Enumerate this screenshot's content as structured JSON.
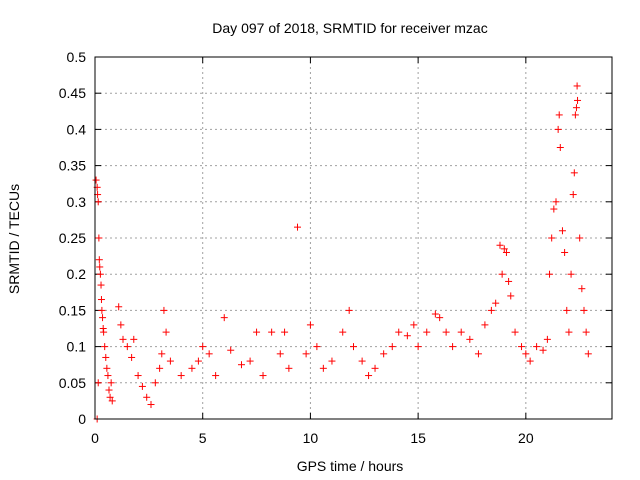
{
  "chart_data": {
    "type": "scatter",
    "title": "Day 097 of 2018, SRMTID for receiver mzac",
    "xlabel": "GPS time / hours",
    "ylabel": "SRMTID / TECUs",
    "xlim": [
      0,
      24
    ],
    "ylim": [
      0,
      0.5
    ],
    "xticks": [
      0,
      5,
      10,
      15,
      20
    ],
    "xtick_labels": [
      "0",
      "5",
      "10",
      "15",
      "20"
    ],
    "yticks": [
      0,
      0.05,
      0.1,
      0.15,
      0.2,
      0.25,
      0.3,
      0.35,
      0.4,
      0.45,
      0.5
    ],
    "ytick_labels": [
      "0",
      "0.05",
      "0.1",
      "0.15",
      "0.2",
      "0.25",
      "0.3",
      "0.35",
      "0.4",
      "0.45",
      "0.5"
    ],
    "grid": true,
    "marker": "+",
    "marker_color": "#ff0000",
    "series": [
      {
        "name": "SRMTID",
        "points": [
          [
            0.05,
            0.33
          ],
          [
            0.1,
            0.32
          ],
          [
            0.12,
            0.31
          ],
          [
            0.15,
            0.3
          ],
          [
            0.18,
            0.25
          ],
          [
            0.2,
            0.22
          ],
          [
            0.22,
            0.21
          ],
          [
            0.25,
            0.2
          ],
          [
            0.28,
            0.185
          ],
          [
            0.3,
            0.165
          ],
          [
            0.32,
            0.15
          ],
          [
            0.35,
            0.14
          ],
          [
            0.38,
            0.125
          ],
          [
            0.4,
            0.12
          ],
          [
            0.1,
            0.0
          ],
          [
            0.15,
            0.05
          ],
          [
            0.45,
            0.1
          ],
          [
            0.5,
            0.085
          ],
          [
            0.55,
            0.07
          ],
          [
            0.6,
            0.06
          ],
          [
            0.65,
            0.04
          ],
          [
            0.7,
            0.03
          ],
          [
            0.75,
            0.05
          ],
          [
            0.8,
            0.025
          ],
          [
            1.1,
            0.155
          ],
          [
            1.2,
            0.13
          ],
          [
            1.3,
            0.11
          ],
          [
            1.5,
            0.1
          ],
          [
            1.7,
            0.085
          ],
          [
            1.8,
            0.11
          ],
          [
            2.0,
            0.06
          ],
          [
            2.2,
            0.045
          ],
          [
            2.4,
            0.03
          ],
          [
            2.6,
            0.02
          ],
          [
            2.8,
            0.05
          ],
          [
            3.0,
            0.07
          ],
          [
            3.1,
            0.09
          ],
          [
            3.2,
            0.15
          ],
          [
            3.3,
            0.12
          ],
          [
            3.5,
            0.08
          ],
          [
            4.0,
            0.06
          ],
          [
            4.5,
            0.07
          ],
          [
            4.8,
            0.08
          ],
          [
            5.0,
            0.1
          ],
          [
            5.3,
            0.09
          ],
          [
            5.6,
            0.06
          ],
          [
            6.0,
            0.14
          ],
          [
            6.3,
            0.095
          ],
          [
            6.8,
            0.075
          ],
          [
            7.2,
            0.08
          ],
          [
            7.5,
            0.12
          ],
          [
            7.8,
            0.06
          ],
          [
            8.2,
            0.12
          ],
          [
            8.6,
            0.09
          ],
          [
            8.8,
            0.12
          ],
          [
            9.0,
            0.07
          ],
          [
            9.4,
            0.265
          ],
          [
            9.8,
            0.09
          ],
          [
            10.0,
            0.13
          ],
          [
            10.3,
            0.1
          ],
          [
            10.6,
            0.07
          ],
          [
            11.0,
            0.08
          ],
          [
            11.5,
            0.12
          ],
          [
            11.8,
            0.15
          ],
          [
            12.0,
            0.1
          ],
          [
            12.4,
            0.08
          ],
          [
            12.7,
            0.06
          ],
          [
            13.0,
            0.07
          ],
          [
            13.4,
            0.09
          ],
          [
            13.8,
            0.1
          ],
          [
            14.1,
            0.12
          ],
          [
            14.5,
            0.115
          ],
          [
            14.8,
            0.13
          ],
          [
            15.0,
            0.1
          ],
          [
            15.4,
            0.12
          ],
          [
            15.8,
            0.145
          ],
          [
            16.0,
            0.14
          ],
          [
            16.3,
            0.12
          ],
          [
            16.6,
            0.1
          ],
          [
            17.0,
            0.12
          ],
          [
            17.4,
            0.11
          ],
          [
            17.8,
            0.09
          ],
          [
            18.1,
            0.13
          ],
          [
            18.4,
            0.15
          ],
          [
            18.6,
            0.16
          ],
          [
            18.8,
            0.24
          ],
          [
            18.9,
            0.2
          ],
          [
            19.0,
            0.235
          ],
          [
            19.1,
            0.23
          ],
          [
            19.2,
            0.19
          ],
          [
            19.3,
            0.17
          ],
          [
            19.5,
            0.12
          ],
          [
            19.8,
            0.1
          ],
          [
            20.0,
            0.09
          ],
          [
            20.2,
            0.08
          ],
          [
            20.5,
            0.1
          ],
          [
            20.8,
            0.095
          ],
          [
            21.0,
            0.11
          ],
          [
            21.1,
            0.2
          ],
          [
            21.2,
            0.25
          ],
          [
            21.3,
            0.29
          ],
          [
            21.4,
            0.3
          ],
          [
            21.5,
            0.4
          ],
          [
            21.55,
            0.42
          ],
          [
            21.6,
            0.375
          ],
          [
            21.7,
            0.26
          ],
          [
            21.8,
            0.23
          ],
          [
            21.9,
            0.15
          ],
          [
            22.0,
            0.12
          ],
          [
            22.1,
            0.2
          ],
          [
            22.2,
            0.31
          ],
          [
            22.25,
            0.34
          ],
          [
            22.3,
            0.42
          ],
          [
            22.35,
            0.43
          ],
          [
            22.38,
            0.46
          ],
          [
            22.4,
            0.44
          ],
          [
            22.5,
            0.25
          ],
          [
            22.6,
            0.18
          ],
          [
            22.7,
            0.15
          ],
          [
            22.8,
            0.12
          ],
          [
            22.9,
            0.09
          ]
        ]
      }
    ]
  }
}
